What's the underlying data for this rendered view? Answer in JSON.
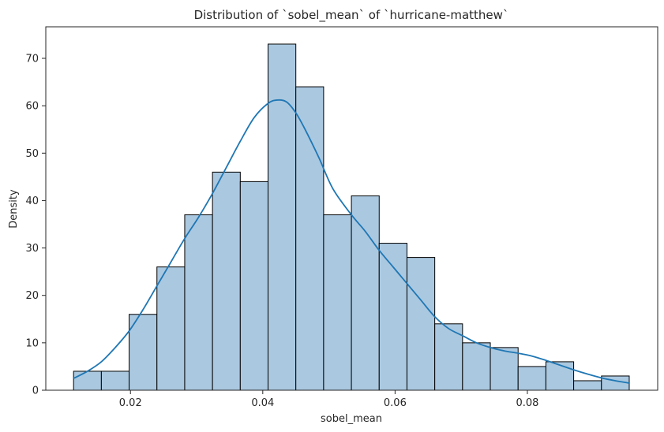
{
  "chart_data": {
    "type": "bar",
    "title": "Distribution of `sobel_mean` of `hurricane-matthew`",
    "xlabel": "sobel_mean",
    "ylabel": "Density",
    "xlim": [
      0.0072,
      0.0997
    ],
    "ylim": [
      0,
      76.65
    ],
    "xticks": [
      0.02,
      0.04,
      0.06,
      0.08
    ],
    "xtick_labels": [
      "0.02",
      "0.04",
      "0.06",
      "0.08"
    ],
    "yticks": [
      0,
      10,
      20,
      30,
      40,
      50,
      60,
      70
    ],
    "ytick_labels": [
      "0",
      "10",
      "20",
      "30",
      "40",
      "50",
      "60",
      "70"
    ],
    "grid": false,
    "bins": [
      {
        "x0": 0.0114,
        "x1": 0.0156,
        "value": 4
      },
      {
        "x0": 0.0156,
        "x1": 0.0198,
        "value": 4
      },
      {
        "x0": 0.0198,
        "x1": 0.024,
        "value": 16
      },
      {
        "x0": 0.024,
        "x1": 0.0282,
        "value": 26
      },
      {
        "x0": 0.0282,
        "x1": 0.0324,
        "value": 37
      },
      {
        "x0": 0.0324,
        "x1": 0.0366,
        "value": 46
      },
      {
        "x0": 0.0366,
        "x1": 0.0408,
        "value": 44
      },
      {
        "x0": 0.0408,
        "x1": 0.045,
        "value": 73
      },
      {
        "x0": 0.045,
        "x1": 0.0492,
        "value": 64
      },
      {
        "x0": 0.0492,
        "x1": 0.0534,
        "value": 37
      },
      {
        "x0": 0.0534,
        "x1": 0.0576,
        "value": 41
      },
      {
        "x0": 0.0576,
        "x1": 0.0618,
        "value": 31
      },
      {
        "x0": 0.0618,
        "x1": 0.066,
        "value": 28
      },
      {
        "x0": 0.066,
        "x1": 0.0702,
        "value": 14
      },
      {
        "x0": 0.0702,
        "x1": 0.0744,
        "value": 10
      },
      {
        "x0": 0.0744,
        "x1": 0.0786,
        "value": 9
      },
      {
        "x0": 0.0786,
        "x1": 0.0828,
        "value": 5
      },
      {
        "x0": 0.0828,
        "x1": 0.087,
        "value": 6
      },
      {
        "x0": 0.087,
        "x1": 0.0912,
        "value": 2
      },
      {
        "x0": 0.0912,
        "x1": 0.0954,
        "value": 3
      }
    ],
    "kde": {
      "x": [
        0.0114,
        0.0135,
        0.0156,
        0.0177,
        0.0198,
        0.0219,
        0.024,
        0.0261,
        0.0282,
        0.0303,
        0.0324,
        0.0345,
        0.0366,
        0.0387,
        0.0408,
        0.0422,
        0.0436,
        0.045,
        0.0464,
        0.0485,
        0.0506,
        0.0534,
        0.0555,
        0.0576,
        0.0597,
        0.0618,
        0.0639,
        0.066,
        0.0681,
        0.0702,
        0.0723,
        0.0744,
        0.0765,
        0.0786,
        0.0807,
        0.0828,
        0.0849,
        0.087,
        0.0891,
        0.0912,
        0.0933,
        0.0954
      ],
      "y": [
        2.5,
        4.0,
        6.0,
        9.0,
        12.5,
        17.0,
        22.0,
        27.0,
        32.0,
        36.5,
        41.5,
        47.0,
        52.5,
        57.5,
        60.5,
        61.2,
        60.8,
        58.5,
        55.0,
        49.0,
        42.5,
        37.0,
        33.5,
        29.5,
        26.0,
        22.5,
        19.0,
        15.5,
        13.0,
        11.5,
        10.0,
        9.0,
        8.3,
        7.8,
        7.2,
        6.3,
        5.3,
        4.3,
        3.4,
        2.6,
        2.0,
        1.5
      ]
    },
    "colors": {
      "bar_fill": "#aac8e0",
      "bar_edge": "#000000",
      "kde_line": "#1f77b4",
      "axis": "#262626"
    }
  }
}
